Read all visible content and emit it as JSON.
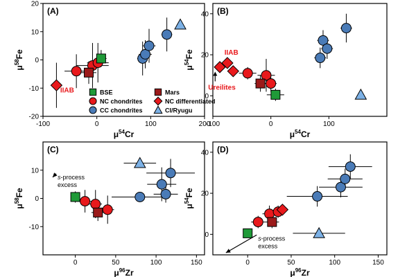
{
  "colors": {
    "red": "#e8191c",
    "darkred": "#9b1a1a",
    "green": "#1f9a38",
    "blue": "#4a7bb7",
    "lightblue": "#7cb1e6",
    "annot_red": "#e8191c"
  },
  "chart_data": [
    {
      "panel": "(A)",
      "type": "scatter",
      "xlabel": "μ54Cr",
      "xlabel_base": "μ",
      "xlabel_sup": "54",
      "xlabel_el": "Cr",
      "ylabel": "μ58Fe",
      "ylabel_base": "μ",
      "ylabel_sup": "58",
      "ylabel_el": "Fe",
      "xlim": [
        -100,
        200
      ],
      "ylim": [
        -20,
        20
      ],
      "xticks": [
        -100,
        0,
        100,
        200
      ],
      "yticks": [
        -20,
        -10,
        0,
        10,
        20
      ],
      "series": [
        {
          "name": "NC chondrites",
          "marker": "circle",
          "color": "red",
          "points": [
            {
              "x": -38,
              "y": -4,
              "ex": 22,
              "ey": 6
            },
            {
              "x": -8,
              "y": -2,
              "ex": 30,
              "ey": 8
            },
            {
              "x": 2,
              "y": -1,
              "ex": 20,
              "ey": 7
            }
          ]
        },
        {
          "name": "Mars",
          "marker": "square",
          "color": "darkred",
          "points": [
            {
              "x": -15,
              "y": -4.5,
              "ex": 14,
              "ey": 4
            }
          ]
        },
        {
          "name": "BSE",
          "marker": "square",
          "color": "green",
          "points": [
            {
              "x": 8,
              "y": 0.5,
              "ex": 10,
              "ey": 3
            }
          ]
        },
        {
          "name": "NC differentiated",
          "marker": "diamond",
          "color": "red",
          "points": [
            {
              "x": -75,
              "y": -9,
              "ex": 0,
              "ey": 8
            }
          ]
        },
        {
          "name": "CC chondrites",
          "marker": "circle",
          "color": "blue",
          "points": [
            {
              "x": 85,
              "y": 0.5,
              "ex": 10,
              "ey": 6
            },
            {
              "x": 90,
              "y": 2,
              "ex": 12,
              "ey": 5
            },
            {
              "x": 97,
              "y": 5,
              "ex": 12,
              "ey": 6
            },
            {
              "x": 130,
              "y": 9,
              "ex": 10,
              "ey": 6
            }
          ]
        },
        {
          "name": "CI/Ryugu",
          "marker": "triangle",
          "color": "lightblue",
          "points": [
            {
              "x": 155,
              "y": 12.5,
              "ex": 0,
              "ey": 0
            }
          ]
        }
      ],
      "annotations": [
        {
          "text": "IIAB",
          "x": -68,
          "y": -11.5,
          "color": "annot_red"
        }
      ],
      "legend": {
        "position": "bottom-center",
        "items": [
          {
            "label": "BSE",
            "marker": "square",
            "color": "green"
          },
          {
            "label": "Mars",
            "marker": "square",
            "color": "darkred"
          },
          {
            "label": "NC chondrites",
            "marker": "circle",
            "color": "red"
          },
          {
            "label": "NC differentiated",
            "marker": "diamond",
            "color": "red"
          },
          {
            "label": "CC chondrites",
            "marker": "circle",
            "color": "blue"
          },
          {
            "label": "CI/Ryugu",
            "marker": "triangle",
            "color": "lightblue"
          }
        ]
      }
    },
    {
      "panel": "(B)",
      "type": "scatter",
      "xlabel": "μ54Cr",
      "xlabel_base": "μ",
      "xlabel_sup": "54",
      "xlabel_el": "Cr",
      "ylabel": "μ54Fe",
      "ylabel_base": "μ",
      "ylabel_sup": "54",
      "ylabel_el": "Fe",
      "xlim": [
        -100,
        200
      ],
      "ylim": [
        -10,
        45
      ],
      "xticks": [
        -100,
        0,
        100
      ],
      "yticks": [
        0,
        20,
        40
      ],
      "series": [
        {
          "name": "NC chondrites",
          "marker": "circle",
          "color": "red",
          "points": [
            {
              "x": -40,
              "y": 11,
              "ex": 15,
              "ey": 3
            },
            {
              "x": -8,
              "y": 10,
              "ex": 15,
              "ey": 8
            },
            {
              "x": 0,
              "y": 6,
              "ex": 10,
              "ey": 4
            }
          ]
        },
        {
          "name": "Mars",
          "marker": "square",
          "color": "darkred",
          "points": [
            {
              "x": -18,
              "y": 6,
              "ex": 10,
              "ey": 4
            }
          ]
        },
        {
          "name": "BSE",
          "marker": "square",
          "color": "green",
          "points": [
            {
              "x": 8,
              "y": 0.5,
              "ex": 15,
              "ey": 3
            }
          ]
        },
        {
          "name": "NC differentiated",
          "marker": "diamond",
          "color": "red",
          "points": [
            {
              "x": -88,
              "y": 14,
              "ex": 0,
              "ey": 0
            },
            {
              "x": -75,
              "y": 16,
              "ex": 0,
              "ey": 0
            },
            {
              "x": -65,
              "y": 12,
              "ex": 0,
              "ey": 0
            }
          ]
        },
        {
          "name": "CC chondrites",
          "marker": "circle",
          "color": "blue",
          "points": [
            {
              "x": 85,
              "y": 18.5,
              "ex": 10,
              "ey": 5
            },
            {
              "x": 90,
              "y": 27,
              "ex": 10,
              "ey": 5
            },
            {
              "x": 97,
              "y": 23,
              "ex": 10,
              "ey": 5
            },
            {
              "x": 130,
              "y": 33,
              "ex": 10,
              "ey": 7
            }
          ]
        },
        {
          "name": "CI/Ryugu",
          "marker": "triangle",
          "color": "lightblue",
          "points": [
            {
              "x": 155,
              "y": 0.5,
              "ex": 0,
              "ey": 0
            }
          ]
        }
      ],
      "annotations": [
        {
          "text": "IIAB",
          "x": -80,
          "y": 20,
          "color": "annot_red"
        },
        {
          "text": "Ureilites",
          "x": -108,
          "y": 3,
          "color": "annot_red",
          "arrow": true
        }
      ]
    },
    {
      "panel": "(C)",
      "type": "scatter",
      "xlabel": "μ96Zr",
      "xlabel_base": "μ",
      "xlabel_sup": "96",
      "xlabel_el": "Zr",
      "ylabel": "μ58Fe",
      "ylabel_base": "μ",
      "ylabel_sup": "58",
      "ylabel_el": "Fe",
      "xlim": [
        -40,
        160
      ],
      "ylim": [
        -20,
        20
      ],
      "xticks": [
        0,
        50,
        100,
        150
      ],
      "yticks": [
        -10,
        0,
        10
      ],
      "series": [
        {
          "name": "NC chondrites",
          "marker": "circle",
          "color": "red",
          "points": [
            {
              "x": 12,
              "y": -1,
              "ex": 8,
              "ey": 4
            },
            {
              "x": 25,
              "y": -2,
              "ex": 8,
              "ey": 5
            },
            {
              "x": 40,
              "y": -4,
              "ex": 8,
              "ey": 5
            }
          ]
        },
        {
          "name": "Mars",
          "marker": "square",
          "color": "darkred",
          "points": [
            {
              "x": 28,
              "y": -5,
              "ex": 8,
              "ey": 3
            }
          ]
        },
        {
          "name": "BSE",
          "marker": "square",
          "color": "green",
          "points": [
            {
              "x": 0,
              "y": 0.5,
              "ex": 5,
              "ey": 2
            }
          ]
        },
        {
          "name": "CC chondrites",
          "marker": "circle",
          "color": "blue",
          "points": [
            {
              "x": 80,
              "y": 0.5,
              "ex": 35,
              "ey": 0
            },
            {
              "x": 107,
              "y": 5,
              "ex": 18,
              "ey": 6
            },
            {
              "x": 112,
              "y": 1.5,
              "ex": 15,
              "ey": 3
            },
            {
              "x": 118,
              "y": 9,
              "ex": 30,
              "ey": 5
            }
          ]
        },
        {
          "name": "CI/Ryugu",
          "marker": "triangle",
          "color": "lightblue",
          "points": [
            {
              "x": 80,
              "y": 12.5,
              "ex": 20,
              "ey": 0
            }
          ]
        }
      ],
      "annotations": [
        {
          "text_lines": [
            "s-process",
            "excess"
          ],
          "x": -22,
          "y": 6.8,
          "arrow_to": [
            -28,
            7.5
          ]
        }
      ]
    },
    {
      "panel": "(D)",
      "type": "scatter",
      "xlabel": "μ96Zr",
      "xlabel_base": "μ",
      "xlabel_sup": "96",
      "xlabel_el": "Zr",
      "ylabel": "μ54Fe",
      "ylabel_base": "μ",
      "ylabel_sup": "54",
      "ylabel_el": "Fe",
      "xlim": [
        -40,
        160
      ],
      "ylim": [
        -10,
        45
      ],
      "xticks": [
        0,
        50,
        100,
        150
      ],
      "yticks": [
        0,
        20,
        40
      ],
      "series": [
        {
          "name": "NC chondrites",
          "marker": "circle",
          "color": "red",
          "points": [
            {
              "x": 12,
              "y": 6,
              "ex": 8,
              "ey": 3
            },
            {
              "x": 25,
              "y": 10,
              "ex": 8,
              "ey": 4
            },
            {
              "x": 35,
              "y": 11,
              "ex": 8,
              "ey": 3
            }
          ]
        },
        {
          "name": "Mars",
          "marker": "square",
          "color": "darkred",
          "points": [
            {
              "x": 28,
              "y": 6,
              "ex": 8,
              "ey": 3
            }
          ]
        },
        {
          "name": "BSE",
          "marker": "square",
          "color": "green",
          "points": [
            {
              "x": 0,
              "y": 0.5,
              "ex": 5,
              "ey": 2
            }
          ]
        },
        {
          "name": "NC differentiated",
          "marker": "diamond",
          "color": "red",
          "points": [
            {
              "x": 40,
              "y": 12,
              "ex": 5,
              "ey": 0
            }
          ]
        },
        {
          "name": "CC chondrites",
          "marker": "circle",
          "color": "blue",
          "points": [
            {
              "x": 80,
              "y": 18.5,
              "ex": 35,
              "ey": 5
            },
            {
              "x": 107,
              "y": 23,
              "ex": 25,
              "ey": 5
            },
            {
              "x": 112,
              "y": 27,
              "ex": 20,
              "ey": 5
            },
            {
              "x": 118,
              "y": 33,
              "ex": 25,
              "ey": 6
            }
          ]
        },
        {
          "name": "CI/Ryugu",
          "marker": "triangle",
          "color": "lightblue",
          "points": [
            {
              "x": 82,
              "y": 0.5,
              "ex": 30,
              "ey": 0
            }
          ]
        }
      ],
      "annotations": [
        {
          "text_lines": [
            "s-process",
            "excess"
          ],
          "x": 12,
          "y": -3,
          "arrow_to": [
            -25,
            -9
          ]
        }
      ]
    }
  ]
}
